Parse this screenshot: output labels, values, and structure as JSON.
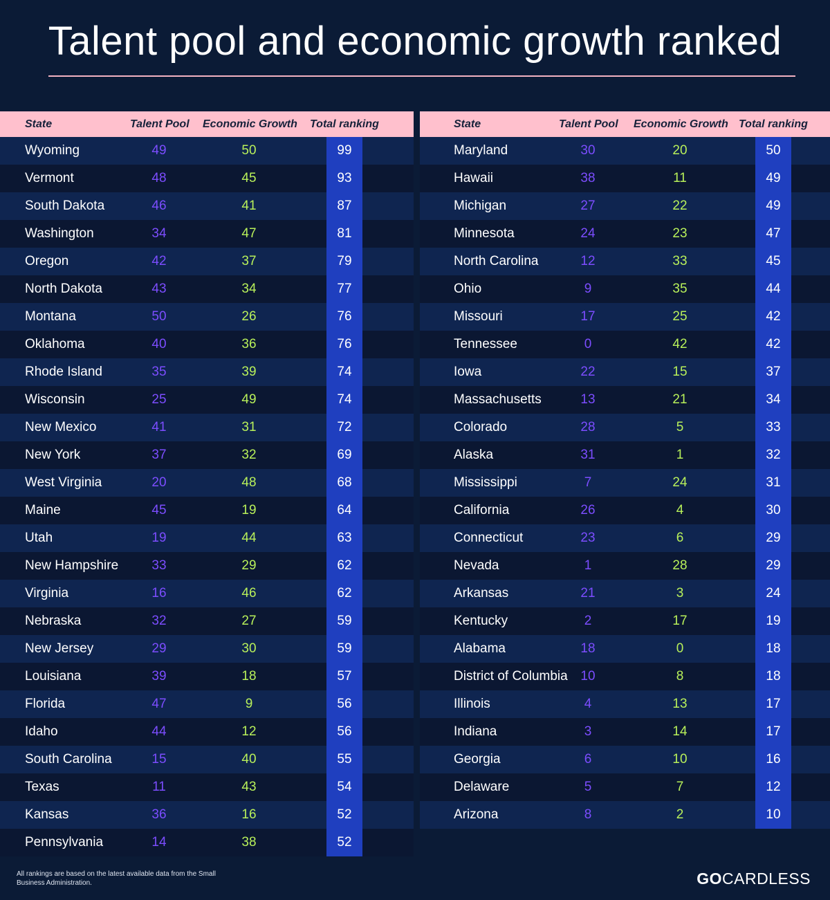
{
  "title": "Talent pool and economic growth ranked",
  "colors": {
    "background": "#0b1b36",
    "header": "#ffc0cd",
    "rule": "#f4b3c2",
    "talent": "#7c4dff",
    "economic": "#b8f05a",
    "total_bg": "#1f3fbf"
  },
  "headers": {
    "state": "State",
    "talent": "Talent Pool",
    "econ": "Economic Growth",
    "total": "Total ranking"
  },
  "footnote": "All rankings are based on the latest available data from the Small Business Administration.",
  "brand": {
    "bold": "GO",
    "rest": "CARDLESS"
  },
  "chart_data": {
    "type": "table",
    "columns": [
      "State",
      "Talent Pool",
      "Economic Growth",
      "Total ranking"
    ],
    "left": [
      [
        "Wyoming",
        49,
        50,
        99
      ],
      [
        "Vermont",
        48,
        45,
        93
      ],
      [
        "South Dakota",
        46,
        41,
        87
      ],
      [
        "Washington",
        34,
        47,
        81
      ],
      [
        "Oregon",
        42,
        37,
        79
      ],
      [
        "North Dakota",
        43,
        34,
        77
      ],
      [
        "Montana",
        50,
        26,
        76
      ],
      [
        "Oklahoma",
        40,
        36,
        76
      ],
      [
        "Rhode Island",
        35,
        39,
        74
      ],
      [
        "Wisconsin",
        25,
        49,
        74
      ],
      [
        "New Mexico",
        41,
        31,
        72
      ],
      [
        "New York",
        37,
        32,
        69
      ],
      [
        "West Virginia",
        20,
        48,
        68
      ],
      [
        "Maine",
        45,
        19,
        64
      ],
      [
        "Utah",
        19,
        44,
        63
      ],
      [
        "New Hampshire",
        33,
        29,
        62
      ],
      [
        "Virginia",
        16,
        46,
        62
      ],
      [
        "Nebraska",
        32,
        27,
        59
      ],
      [
        "New Jersey",
        29,
        30,
        59
      ],
      [
        "Louisiana",
        39,
        18,
        57
      ],
      [
        "Florida",
        47,
        9,
        56
      ],
      [
        "Idaho",
        44,
        12,
        56
      ],
      [
        "South Carolina",
        15,
        40,
        55
      ],
      [
        "Texas",
        11,
        43,
        54
      ],
      [
        "Kansas",
        36,
        16,
        52
      ],
      [
        "Pennsylvania",
        14,
        38,
        52
      ]
    ],
    "right": [
      [
        "Maryland",
        30,
        20,
        50
      ],
      [
        "Hawaii",
        38,
        11,
        49
      ],
      [
        "Michigan",
        27,
        22,
        49
      ],
      [
        "Minnesota",
        24,
        23,
        47
      ],
      [
        "North Carolina",
        12,
        33,
        45
      ],
      [
        "Ohio",
        9,
        35,
        44
      ],
      [
        "Missouri",
        17,
        25,
        42
      ],
      [
        "Tennessee",
        0,
        42,
        42
      ],
      [
        "Iowa",
        22,
        15,
        37
      ],
      [
        "Massachusetts",
        13,
        21,
        34
      ],
      [
        "Colorado",
        28,
        5,
        33
      ],
      [
        "Alaska",
        31,
        1,
        32
      ],
      [
        "Mississippi",
        7,
        24,
        31
      ],
      [
        "California",
        26,
        4,
        30
      ],
      [
        "Connecticut",
        23,
        6,
        29
      ],
      [
        "Nevada",
        1,
        28,
        29
      ],
      [
        "Arkansas",
        21,
        3,
        24
      ],
      [
        "Kentucky",
        2,
        17,
        19
      ],
      [
        "Alabama",
        18,
        0,
        18
      ],
      [
        "District of Columbia",
        10,
        8,
        18
      ],
      [
        "Illinois",
        4,
        13,
        17
      ],
      [
        "Indiana",
        3,
        14,
        17
      ],
      [
        "Georgia",
        6,
        10,
        16
      ],
      [
        "Delaware",
        5,
        7,
        12
      ],
      [
        "Arizona",
        8,
        2,
        10
      ]
    ]
  }
}
